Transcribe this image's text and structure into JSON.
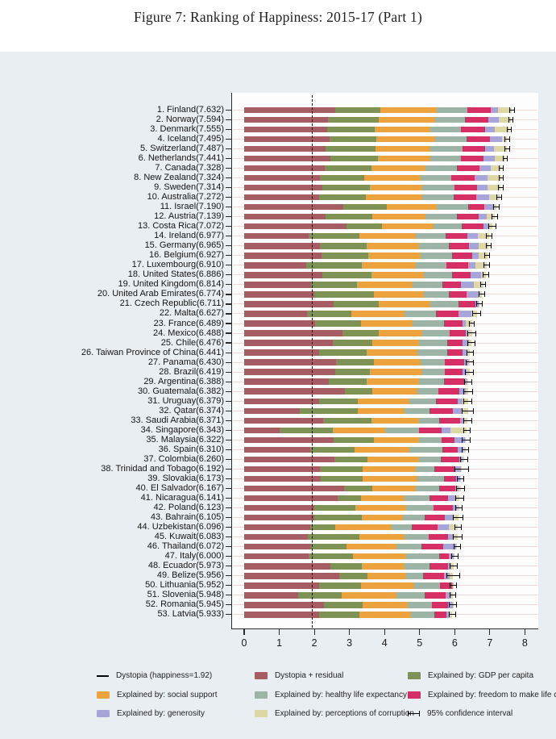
{
  "figure": {
    "title": "Figure 7: Ranking of Happiness: 2015-17 (Part 1)"
  },
  "chart_data": {
    "type": "bar",
    "orientation": "horizontal",
    "stacked": true,
    "title": "Figure 7: Ranking of Happiness: 2015-17 (Part 1)",
    "xlabel": "",
    "ylabel": "",
    "xlim": [
      0,
      8
    ],
    "x_ticks": [
      0,
      1,
      2,
      3,
      4,
      5,
      6,
      7,
      8
    ],
    "grid": "faint horizontal row guides",
    "dystopia_reference_line": 1.92,
    "segment_keys": [
      "dystopia_residual",
      "gdp",
      "social_support",
      "healthy_life_expectancy",
      "freedom",
      "generosity",
      "corruption"
    ],
    "segment_colors": {
      "dystopia_residual": "#a55c63",
      "gdp": "#7d9254",
      "social_support": "#eca33d",
      "healthy_life_expectancy": "#9cb3a5",
      "freedom": "#d62f66",
      "generosity": "#a7a4da",
      "corruption": "#ddd7a4"
    },
    "axis_color": "#2b2b2b",
    "background_color": "#e9eef3",
    "plot_background_color": "#fdfdfd",
    "label_format": "{rank}. {name}({score})",
    "countries": [
      {
        "rank": 1,
        "name": "Finland",
        "score": 7.632,
        "dystopia_residual": 2.585,
        "gdp": 1.305,
        "social_support": 1.592,
        "healthy_life_expectancy": 0.874,
        "freedom": 0.681,
        "generosity": 0.202,
        "corruption": 0.393,
        "ci": 0.075
      },
      {
        "rank": 2,
        "name": "Norway",
        "score": 7.594,
        "dystopia_residual": 2.383,
        "gdp": 1.456,
        "social_support": 1.582,
        "healthy_life_expectancy": 0.861,
        "freedom": 0.686,
        "generosity": 0.286,
        "corruption": 0.34,
        "ci": 0.07
      },
      {
        "rank": 3,
        "name": "Denmark",
        "score": 7.555,
        "dystopia_residual": 2.371,
        "gdp": 1.351,
        "social_support": 1.59,
        "healthy_life_expectancy": 0.868,
        "freedom": 0.683,
        "generosity": 0.284,
        "corruption": 0.408,
        "ci": 0.075
      },
      {
        "rank": 4,
        "name": "Iceland",
        "score": 7.495,
        "dystopia_residual": 2.426,
        "gdp": 1.343,
        "social_support": 1.644,
        "healthy_life_expectancy": 0.914,
        "freedom": 0.677,
        "generosity": 0.353,
        "corruption": 0.138,
        "ci": 0.085
      },
      {
        "rank": 5,
        "name": "Switzerland",
        "score": 7.487,
        "dystopia_residual": 2.318,
        "gdp": 1.42,
        "social_support": 1.549,
        "healthy_life_expectancy": 0.927,
        "freedom": 0.66,
        "generosity": 0.256,
        "corruption": 0.357,
        "ci": 0.08
      },
      {
        "rank": 6,
        "name": "Netherlands",
        "score": 7.441,
        "dystopia_residual": 2.448,
        "gdp": 1.361,
        "social_support": 1.488,
        "healthy_life_expectancy": 0.878,
        "freedom": 0.638,
        "generosity": 0.333,
        "corruption": 0.295,
        "ci": 0.07
      },
      {
        "rank": 7,
        "name": "Canada",
        "score": 7.328,
        "dystopia_residual": 2.305,
        "gdp": 1.33,
        "social_support": 1.532,
        "healthy_life_expectancy": 0.896,
        "freedom": 0.653,
        "generosity": 0.321,
        "corruption": 0.291,
        "ci": 0.07
      },
      {
        "rank": 8,
        "name": "New Zealand",
        "score": 7.324,
        "dystopia_residual": 2.156,
        "gdp": 1.268,
        "social_support": 1.601,
        "healthy_life_expectancy": 0.876,
        "freedom": 0.669,
        "generosity": 0.365,
        "corruption": 0.389,
        "ci": 0.07
      },
      {
        "rank": 9,
        "name": "Sweden",
        "score": 7.314,
        "dystopia_residual": 2.218,
        "gdp": 1.355,
        "social_support": 1.501,
        "healthy_life_expectancy": 0.913,
        "freedom": 0.659,
        "generosity": 0.285,
        "corruption": 0.383,
        "ci": 0.075
      },
      {
        "rank": 10,
        "name": "Australia",
        "score": 7.272,
        "dystopia_residual": 2.139,
        "gdp": 1.34,
        "social_support": 1.573,
        "healthy_life_expectancy": 0.91,
        "freedom": 0.647,
        "generosity": 0.361,
        "corruption": 0.302,
        "ci": 0.08
      },
      {
        "rank": 11,
        "name": "Israel",
        "score": 7.19,
        "dystopia_residual": 2.817,
        "gdp": 1.244,
        "social_support": 1.433,
        "healthy_life_expectancy": 0.888,
        "freedom": 0.464,
        "generosity": 0.262,
        "corruption": 0.082,
        "ci": 0.085
      },
      {
        "rank": 12,
        "name": "Austria",
        "score": 7.139,
        "dystopia_residual": 2.32,
        "gdp": 1.341,
        "social_support": 1.504,
        "healthy_life_expectancy": 0.891,
        "freedom": 0.617,
        "generosity": 0.242,
        "corruption": 0.224,
        "ci": 0.085
      },
      {
        "rank": 13,
        "name": "Costa Rica",
        "score": 7.072,
        "dystopia_residual": 2.91,
        "gdp": 1.01,
        "social_support": 1.459,
        "healthy_life_expectancy": 0.817,
        "freedom": 0.632,
        "generosity": 0.143,
        "corruption": 0.101,
        "ci": 0.115
      },
      {
        "rank": 14,
        "name": "Ireland",
        "score": 6.977,
        "dystopia_residual": 1.843,
        "gdp": 1.448,
        "social_support": 1.583,
        "healthy_life_expectancy": 0.876,
        "freedom": 0.614,
        "generosity": 0.307,
        "corruption": 0.306,
        "ci": 0.085
      },
      {
        "rank": 15,
        "name": "Germany",
        "score": 6.965,
        "dystopia_residual": 2.151,
        "gdp": 1.34,
        "social_support": 1.474,
        "healthy_life_expectancy": 0.861,
        "freedom": 0.586,
        "generosity": 0.273,
        "corruption": 0.28,
        "ci": 0.08
      },
      {
        "rank": 16,
        "name": "Belgium",
        "score": 6.927,
        "dystopia_residual": 2.215,
        "gdp": 1.324,
        "social_support": 1.483,
        "healthy_life_expectancy": 0.894,
        "freedom": 0.583,
        "generosity": 0.188,
        "corruption": 0.24,
        "ci": 0.08
      },
      {
        "rank": 17,
        "name": "Luxembourg",
        "score": 6.91,
        "dystopia_residual": 1.769,
        "gdp": 1.576,
        "social_support": 1.52,
        "healthy_life_expectancy": 0.896,
        "freedom": 0.632,
        "generosity": 0.196,
        "corruption": 0.321,
        "ci": 0.09
      },
      {
        "rank": 18,
        "name": "United States",
        "score": 6.886,
        "dystopia_residual": 2.227,
        "gdp": 1.398,
        "social_support": 1.471,
        "healthy_life_expectancy": 0.819,
        "freedom": 0.547,
        "generosity": 0.291,
        "corruption": 0.133,
        "ci": 0.085
      },
      {
        "rank": 19,
        "name": "United Kingdom",
        "score": 6.814,
        "dystopia_residual": 1.912,
        "gdp": 1.301,
        "social_support": 1.559,
        "healthy_life_expectancy": 0.883,
        "freedom": 0.533,
        "generosity": 0.354,
        "corruption": 0.272,
        "ci": 0.085
      },
      {
        "rank": 20,
        "name": "United Arab Emirates",
        "score": 6.774,
        "dystopia_residual": 1.998,
        "gdp": 1.7,
        "social_support": 1.43,
        "healthy_life_expectancy": 0.706,
        "freedom": 0.51,
        "generosity": 0.35,
        "corruption": 0.08,
        "ci": 0.095
      },
      {
        "rank": 21,
        "name": "Czech Republic",
        "score": 6.711,
        "dystopia_residual": 2.544,
        "gdp": 1.301,
        "social_support": 1.464,
        "healthy_life_expectancy": 0.79,
        "freedom": 0.49,
        "generosity": 0.086,
        "corruption": 0.036,
        "ci": 0.095
      },
      {
        "rank": 22,
        "name": "Malta",
        "score": 6.627,
        "dystopia_residual": 1.785,
        "gdp": 1.27,
        "social_support": 1.525,
        "healthy_life_expectancy": 0.884,
        "freedom": 0.645,
        "generosity": 0.376,
        "corruption": 0.142,
        "ci": 0.135
      },
      {
        "rank": 23,
        "name": "France",
        "score": 6.489,
        "dystopia_residual": 2.028,
        "gdp": 1.293,
        "social_support": 1.466,
        "healthy_life_expectancy": 0.908,
        "freedom": 0.52,
        "generosity": 0.098,
        "corruption": 0.176,
        "ci": 0.085
      },
      {
        "rank": 24,
        "name": "Mexico",
        "score": 6.488,
        "dystopia_residual": 2.794,
        "gdp": 1.038,
        "social_support": 1.252,
        "healthy_life_expectancy": 0.761,
        "freedom": 0.479,
        "generosity": 0.069,
        "corruption": 0.095,
        "ci": 0.12
      },
      {
        "rank": 25,
        "name": "Chile",
        "score": 6.476,
        "dystopia_residual": 2.517,
        "gdp": 1.131,
        "social_support": 1.331,
        "healthy_life_expectancy": 0.808,
        "freedom": 0.431,
        "generosity": 0.197,
        "corruption": 0.061,
        "ci": 0.115
      },
      {
        "rank": 26,
        "name": "Taiwan Province of China",
        "score": 6.441,
        "dystopia_residual": 2.136,
        "gdp": 1.365,
        "social_support": 1.436,
        "healthy_life_expectancy": 0.857,
        "freedom": 0.418,
        "generosity": 0.151,
        "corruption": 0.078,
        "ci": 0.1
      },
      {
        "rank": 27,
        "name": "Panama",
        "score": 6.43,
        "dystopia_residual": 2.62,
        "gdp": 1.072,
        "social_support": 1.315,
        "healthy_life_expectancy": 0.71,
        "freedom": 0.55,
        "generosity": 0.109,
        "corruption": 0.054,
        "ci": 0.12
      },
      {
        "rank": 28,
        "name": "Brazil",
        "score": 6.419,
        "dystopia_residual": 2.593,
        "gdp": 0.986,
        "social_support": 1.474,
        "healthy_life_expectancy": 0.675,
        "freedom": 0.493,
        "generosity": 0.11,
        "corruption": 0.088,
        "ci": 0.12
      },
      {
        "rank": 29,
        "name": "Argentina",
        "score": 6.388,
        "dystopia_residual": 2.417,
        "gdp": 1.073,
        "social_support": 1.468,
        "healthy_life_expectancy": 0.744,
        "freedom": 0.57,
        "generosity": 0.062,
        "corruption": 0.054,
        "ci": 0.115
      },
      {
        "rank": 30,
        "name": "Guatemala",
        "score": 6.382,
        "dystopia_residual": 2.87,
        "gdp": 0.781,
        "social_support": 1.269,
        "healthy_life_expectancy": 0.608,
        "freedom": 0.604,
        "generosity": 0.179,
        "corruption": 0.071,
        "ci": 0.135
      },
      {
        "rank": 31,
        "name": "Uruguay",
        "score": 6.379,
        "dystopia_residual": 2.146,
        "gdp": 1.093,
        "social_support": 1.459,
        "healthy_life_expectancy": 0.771,
        "freedom": 0.625,
        "generosity": 0.13,
        "corruption": 0.155,
        "ci": 0.13
      },
      {
        "rank": 32,
        "name": "Qatar",
        "score": 6.374,
        "dystopia_residual": 1.593,
        "gdp": 1.649,
        "social_support": 1.303,
        "healthy_life_expectancy": 0.748,
        "freedom": 0.654,
        "generosity": 0.256,
        "corruption": 0.171,
        "ci": 0.175
      },
      {
        "rank": 33,
        "name": "Saudi Arabia",
        "score": 6.371,
        "dystopia_residual": 2.252,
        "gdp": 1.379,
        "social_support": 1.331,
        "healthy_life_expectancy": 0.601,
        "freedom": 0.596,
        "generosity": 0.08,
        "corruption": 0.132,
        "ci": 0.13
      },
      {
        "rank": 34,
        "name": "Singapore",
        "score": 6.343,
        "dystopia_residual": 1.006,
        "gdp": 1.529,
        "social_support": 1.451,
        "healthy_life_expectancy": 1.008,
        "freedom": 0.631,
        "generosity": 0.261,
        "corruption": 0.457,
        "ci": 0.1
      },
      {
        "rank": 35,
        "name": "Malaysia",
        "score": 6.322,
        "dystopia_residual": 2.544,
        "gdp": 1.161,
        "social_support": 1.258,
        "healthy_life_expectancy": 0.669,
        "freedom": 0.356,
        "generosity": 0.31,
        "corruption": 0.024,
        "ci": 0.12
      },
      {
        "rank": 36,
        "name": "Spain",
        "score": 6.31,
        "dystopia_residual": 1.891,
        "gdp": 1.251,
        "social_support": 1.538,
        "healthy_life_expectancy": 0.965,
        "freedom": 0.449,
        "generosity": 0.142,
        "corruption": 0.074,
        "ci": 0.1
      },
      {
        "rank": 37,
        "name": "Colombia",
        "score": 6.26,
        "dystopia_residual": 2.562,
        "gdp": 0.96,
        "social_support": 1.439,
        "healthy_life_expectancy": 0.635,
        "freedom": 0.531,
        "generosity": 0.099,
        "corruption": 0.034,
        "ci": 0.115
      },
      {
        "rank": 38,
        "name": "Trinidad and Tobago",
        "score": 6.192,
        "dystopia_residual": 2.148,
        "gdp": 1.223,
        "social_support": 1.492,
        "healthy_life_expectancy": 0.564,
        "freedom": 0.575,
        "generosity": 0.171,
        "corruption": 0.019,
        "ci": 0.21
      },
      {
        "rank": 39,
        "name": "Slovakia",
        "score": 6.173,
        "dystopia_residual": 2.172,
        "gdp": 1.21,
        "social_support": 1.537,
        "healthy_life_expectancy": 0.776,
        "freedom": 0.354,
        "generosity": 0.11,
        "corruption": 0.014,
        "ci": 0.105
      },
      {
        "rank": 40,
        "name": "El Salvador",
        "score": 6.167,
        "dystopia_residual": 2.848,
        "gdp": 0.794,
        "social_support": 1.242,
        "healthy_life_expectancy": 0.675,
        "freedom": 0.462,
        "generosity": 0.082,
        "corruption": 0.064,
        "ci": 0.13
      },
      {
        "rank": 41,
        "name": "Nicaragua",
        "score": 6.141,
        "dystopia_residual": 2.661,
        "gdp": 0.668,
        "social_support": 1.247,
        "healthy_life_expectancy": 0.702,
        "freedom": 0.527,
        "generosity": 0.208,
        "corruption": 0.128,
        "ci": 0.13
      },
      {
        "rank": 42,
        "name": "Poland",
        "score": 6.123,
        "dystopia_residual": 2.0,
        "gdp": 1.176,
        "social_support": 1.448,
        "healthy_life_expectancy": 0.781,
        "freedom": 0.546,
        "generosity": 0.108,
        "corruption": 0.064,
        "ci": 0.1
      },
      {
        "rank": 43,
        "name": "Bahrain",
        "score": 6.105,
        "dystopia_residual": 1.994,
        "gdp": 1.366,
        "social_support": 1.171,
        "healthy_life_expectancy": 0.604,
        "freedom": 0.574,
        "generosity": 0.261,
        "corruption": 0.135,
        "ci": 0.15
      },
      {
        "rank": 44,
        "name": "Uzbekistan",
        "score": 6.096,
        "dystopia_residual": 1.877,
        "gdp": 0.719,
        "social_support": 1.584,
        "healthy_life_expectancy": 0.605,
        "freedom": 0.724,
        "generosity": 0.328,
        "corruption": 0.259,
        "ci": 0.105
      },
      {
        "rank": 45,
        "name": "Kuwait",
        "score": 6.083,
        "dystopia_residual": 1.806,
        "gdp": 1.474,
        "social_support": 1.301,
        "healthy_life_expectancy": 0.675,
        "freedom": 0.554,
        "generosity": 0.167,
        "corruption": 0.106,
        "ci": 0.135
      },
      {
        "rank": 46,
        "name": "Thailand",
        "score": 6.072,
        "dystopia_residual": 1.902,
        "gdp": 1.016,
        "social_support": 1.417,
        "healthy_life_expectancy": 0.707,
        "freedom": 0.637,
        "generosity": 0.364,
        "corruption": 0.029,
        "ci": 0.11
      },
      {
        "rank": 47,
        "name": "Italy",
        "score": 6.0,
        "dystopia_residual": 1.843,
        "gdp": 1.264,
        "social_support": 1.501,
        "healthy_life_expectancy": 0.946,
        "freedom": 0.281,
        "generosity": 0.137,
        "corruption": 0.028,
        "ci": 0.105
      },
      {
        "rank": 48,
        "name": "Ecuador",
        "score": 5.973,
        "dystopia_residual": 2.462,
        "gdp": 0.896,
        "social_support": 1.212,
        "healthy_life_expectancy": 0.713,
        "freedom": 0.531,
        "generosity": 0.099,
        "corruption": 0.06,
        "ci": 0.12
      },
      {
        "rank": 49,
        "name": "Belize",
        "score": 5.956,
        "dystopia_residual": 2.709,
        "gdp": 0.807,
        "social_support": 1.101,
        "healthy_life_expectancy": 0.474,
        "freedom": 0.593,
        "generosity": 0.183,
        "corruption": 0.089,
        "ci": 0.19
      },
      {
        "rank": 50,
        "name": "Lithuania",
        "score": 5.952,
        "dystopia_residual": 2.13,
        "gdp": 1.197,
        "social_support": 1.527,
        "healthy_life_expectancy": 0.716,
        "freedom": 0.35,
        "generosity": 0.026,
        "corruption": 0.006,
        "ci": 0.105
      },
      {
        "rank": 51,
        "name": "Slovenia",
        "score": 5.948,
        "dystopia_residual": 1.531,
        "gdp": 1.258,
        "social_support": 1.523,
        "healthy_life_expectancy": 0.832,
        "freedom": 0.603,
        "generosity": 0.144,
        "corruption": 0.057,
        "ci": 0.1
      },
      {
        "rank": 52,
        "name": "Romania",
        "score": 5.945,
        "dystopia_residual": 2.271,
        "gdp": 1.107,
        "social_support": 1.287,
        "healthy_life_expectancy": 0.685,
        "freedom": 0.457,
        "generosity": 0.133,
        "corruption": 0.005,
        "ci": 0.115
      },
      {
        "rank": 53,
        "name": "Latvia",
        "score": 5.933,
        "dystopia_residual": 2.139,
        "gdp": 1.148,
        "social_support": 1.454,
        "healthy_life_expectancy": 0.671,
        "freedom": 0.363,
        "generosity": 0.092,
        "corruption": 0.066,
        "ci": 0.105
      }
    ],
    "legend": {
      "position": "bottom",
      "items": [
        {
          "marker": "line",
          "label": "Dystopia (happiness=1.92)"
        },
        {
          "marker": "swatch",
          "color_key": "dystopia_residual",
          "label": "Dystopia + residual"
        },
        {
          "marker": "swatch",
          "color_key": "gdp",
          "label": "Explained by: GDP per capita"
        },
        {
          "marker": "swatch",
          "color_key": "social_support",
          "label": "Explained by: social support"
        },
        {
          "marker": "swatch",
          "color_key": "healthy_life_expectancy",
          "label": "Explained by: healthy life expectancy"
        },
        {
          "marker": "swatch",
          "color_key": "freedom",
          "label": "Explained by: freedom to make life choices"
        },
        {
          "marker": "swatch",
          "color_key": "generosity",
          "label": "Explained by: generosity"
        },
        {
          "marker": "swatch",
          "color_key": "corruption",
          "label": "Explained by: perceptions of corruption"
        },
        {
          "marker": "errorbar",
          "label": "95% confidence interval"
        }
      ]
    }
  }
}
